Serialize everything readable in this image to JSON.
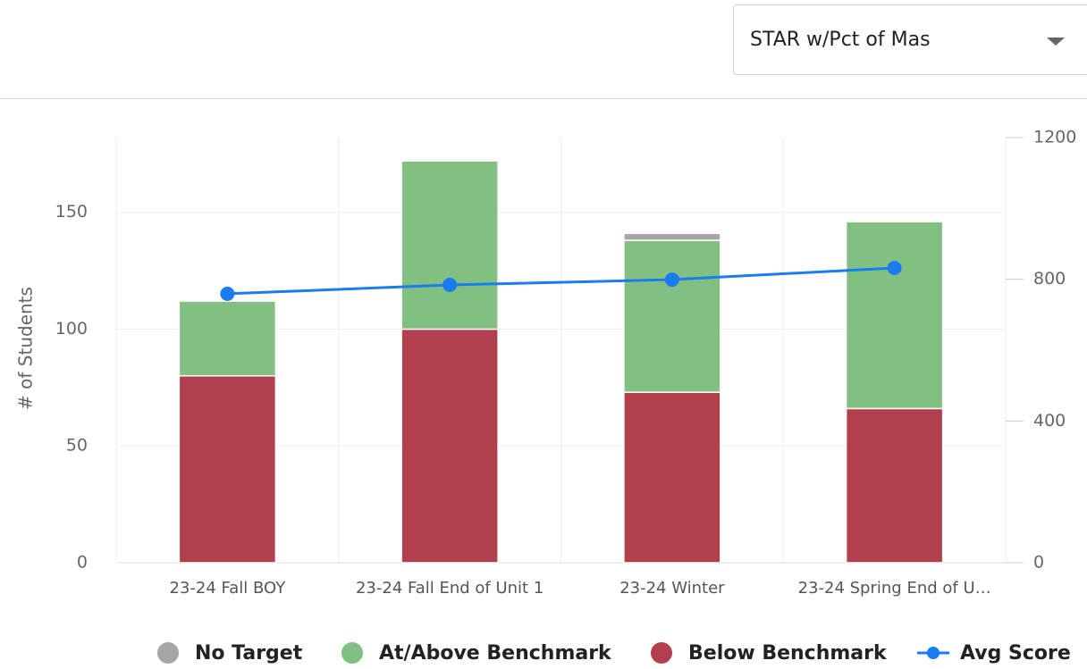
{
  "dropdown": {
    "selected": "STAR w/Pct of Mas"
  },
  "chart_data": {
    "type": "bar",
    "stacked": true,
    "y_label": "# of Students",
    "categories": [
      "23-24 Fall BOY",
      "23-24 Fall End of Unit 1",
      "23-24 Winter",
      "23-24 Spring End of U…"
    ],
    "series": [
      {
        "name": "No Target",
        "color": "#a6a6a6",
        "values": [
          0,
          0,
          3,
          0
        ]
      },
      {
        "name": "At/Above Benchmark",
        "color": "#82bf82",
        "values": [
          32,
          72,
          65,
          80
        ]
      },
      {
        "name": "Below Benchmark",
        "color": "#b23f4e",
        "values": [
          80,
          100,
          73,
          66
        ]
      },
      {
        "name": "Avg Score",
        "color": "#1a7cf0",
        "type": "line",
        "axis": "y2",
        "values": [
          759,
          784,
          799,
          832
        ]
      }
    ],
    "ylim": [
      0,
      182
    ],
    "yticks": [
      0,
      50,
      100,
      150
    ],
    "y2lim": [
      0,
      1200
    ],
    "y2ticks": [
      0,
      400,
      800,
      1200
    ],
    "grid": true,
    "legend": "bottom"
  }
}
